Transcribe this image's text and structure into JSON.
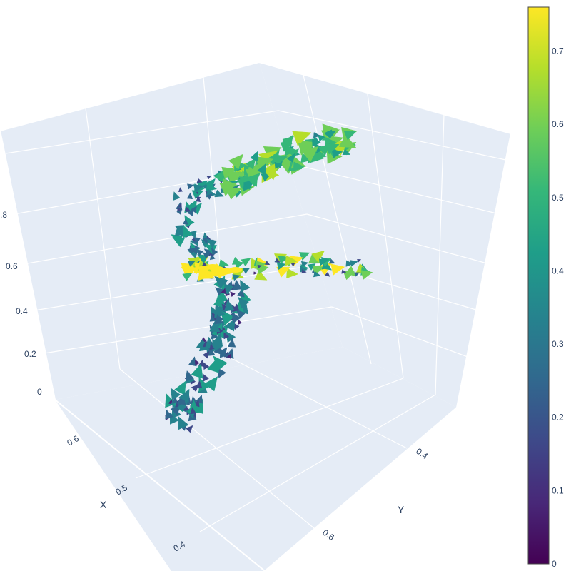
{
  "chart_data": {
    "type": "cone",
    "title": "",
    "scene": {
      "bgcolor": "#e5ecf6",
      "gridcolor": "#ffffff",
      "xaxis": {
        "title": "X",
        "tick_labels": [
          "0.6",
          "0.5",
          "0.4"
        ]
      },
      "yaxis": {
        "title": "Y",
        "tick_labels": [
          "0.4",
          "0.6"
        ]
      },
      "zaxis": {
        "title": "",
        "tick_labels": [
          "0",
          "0.2",
          "0.4",
          "0.6",
          ".8"
        ]
      }
    },
    "colorbar": {
      "colorscale": "Viridis",
      "range": [
        0,
        0.76
      ],
      "tick_labels": [
        "0",
        "0.1",
        "0.2",
        "0.3",
        "0.4",
        "0.5",
        "0.6",
        "0.7"
      ],
      "tick_values": [
        0,
        0.1,
        0.2,
        0.3,
        0.4,
        0.5,
        0.6,
        0.7
      ]
    },
    "colors": [
      "#440154",
      "#482878",
      "#3e4989",
      "#31688e",
      "#26828e",
      "#1f9e89",
      "#35b779",
      "#6ece58",
      "#b5de2b",
      "#fde725"
    ],
    "vector_field_shape": "F-shaped streamtube of cones: vertical trunk, middle arm, top arm",
    "segments": [
      {
        "name": "trunk",
        "magnitude_range": [
          0.1,
          0.45
        ]
      },
      {
        "name": "middle-arm",
        "magnitude_range": [
          0.1,
          0.76
        ]
      },
      {
        "name": "upper-curve",
        "magnitude_range": [
          0.15,
          0.45
        ]
      },
      {
        "name": "top-arm",
        "magnitude_range": [
          0.35,
          0.65
        ]
      }
    ]
  }
}
